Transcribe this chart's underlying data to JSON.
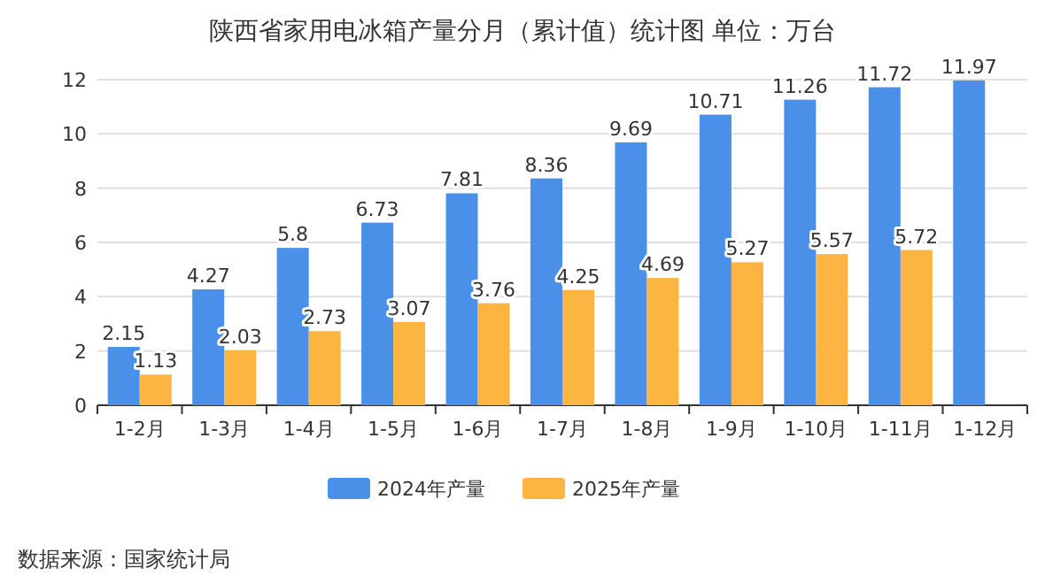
{
  "chart_data": {
    "type": "bar",
    "title": "陕西省家用电冰箱产量分月（累计值）统计图 单位：万台",
    "categories": [
      "1-2月",
      "1-3月",
      "1-4月",
      "1-5月",
      "1-6月",
      "1-7月",
      "1-8月",
      "1-9月",
      "1-10月",
      "1-11月",
      "1-12月"
    ],
    "series": [
      {
        "name": "2024年产量",
        "color": "#4a8fe8",
        "values": [
          2.15,
          4.27,
          5.8,
          6.73,
          7.81,
          8.36,
          9.69,
          10.71,
          11.26,
          11.72,
          11.97
        ]
      },
      {
        "name": "2025年产量",
        "color": "#fbb540",
        "values": [
          1.13,
          2.03,
          2.73,
          3.07,
          3.76,
          4.25,
          4.69,
          5.27,
          5.57,
          5.72,
          null
        ]
      }
    ],
    "ylim": [
      0,
      12
    ],
    "yticks": [
      0,
      2,
      4,
      6,
      8,
      10,
      12
    ],
    "grid": "y",
    "legend": "bottom",
    "data_labels": true,
    "annotations": [
      "数据来源：国家统计局"
    ]
  }
}
